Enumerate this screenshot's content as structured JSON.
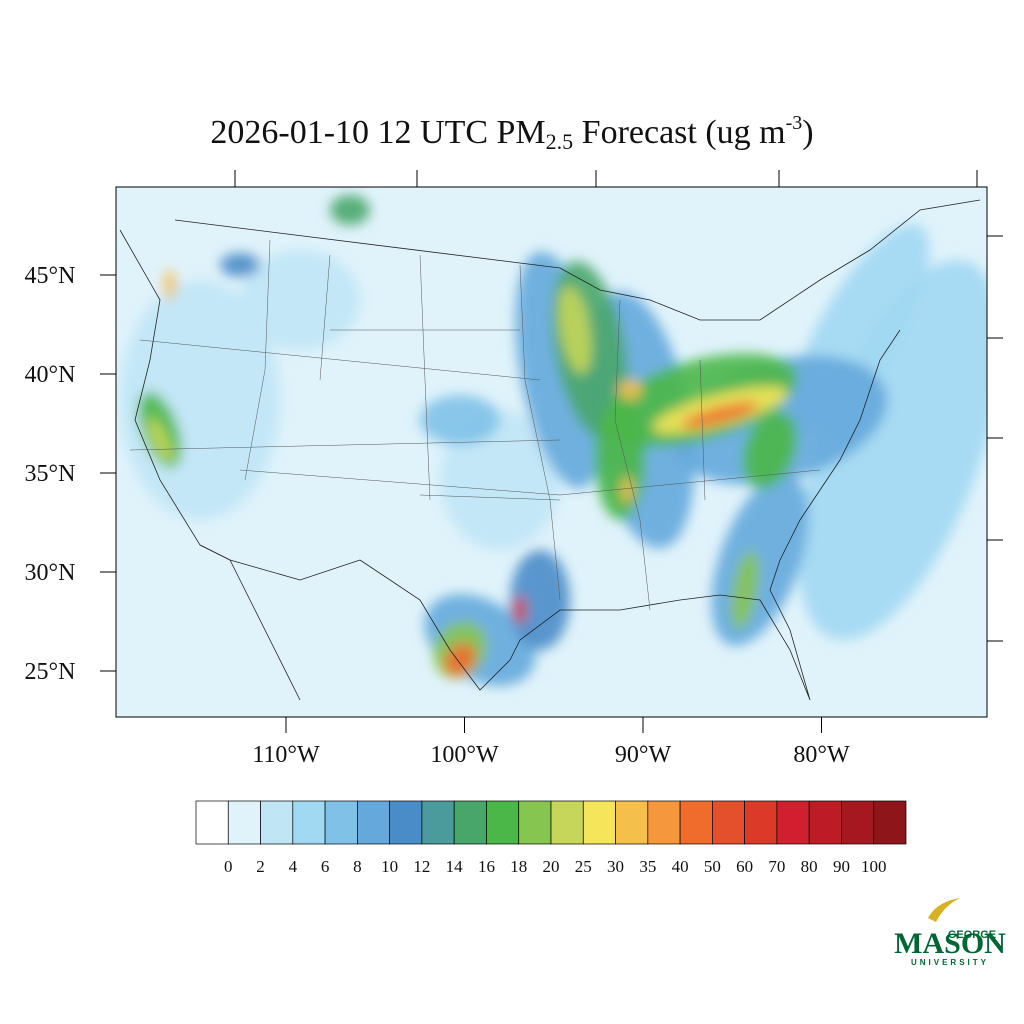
{
  "title": {
    "prefix": "2026-01-10 12 UTC PM",
    "subscript": "2.5",
    "middle": " Forecast (ug m",
    "superscript": "-3",
    "suffix": ")"
  },
  "map": {
    "lat_labels": [
      {
        "value": 45,
        "label": "45°N"
      },
      {
        "value": 40,
        "label": "40°N"
      },
      {
        "value": 35,
        "label": "35°N"
      },
      {
        "value": 30,
        "label": "30°N"
      },
      {
        "value": 25,
        "label": "25°N"
      }
    ],
    "lon_labels": [
      {
        "value": -110,
        "label": "110°W"
      },
      {
        "value": -100,
        "label": "100°W"
      },
      {
        "value": -90,
        "label": "90°W"
      },
      {
        "value": -80,
        "label": "80°W"
      }
    ]
  },
  "colorbar": {
    "levels": [
      0,
      2,
      4,
      6,
      8,
      10,
      12,
      14,
      16,
      18,
      20,
      25,
      30,
      35,
      40,
      50,
      60,
      70,
      80,
      90,
      100
    ],
    "colors": [
      "#ffffff",
      "#e0f3fb",
      "#c0e6f6",
      "#a1d8f2",
      "#80c1e8",
      "#64a8dc",
      "#4a8cc8",
      "#4b9a9c",
      "#48a66a",
      "#4bb748",
      "#86c54f",
      "#c5d65a",
      "#f5e55a",
      "#f5bf4c",
      "#f5973d",
      "#f06c2d",
      "#e5502c",
      "#dc3a29",
      "#d02030",
      "#bd1c26",
      "#a5181f",
      "#8e1519"
    ]
  },
  "logo": {
    "top": "GEORGE",
    "main": "MASON",
    "bottom": "UNIVERSITY"
  }
}
